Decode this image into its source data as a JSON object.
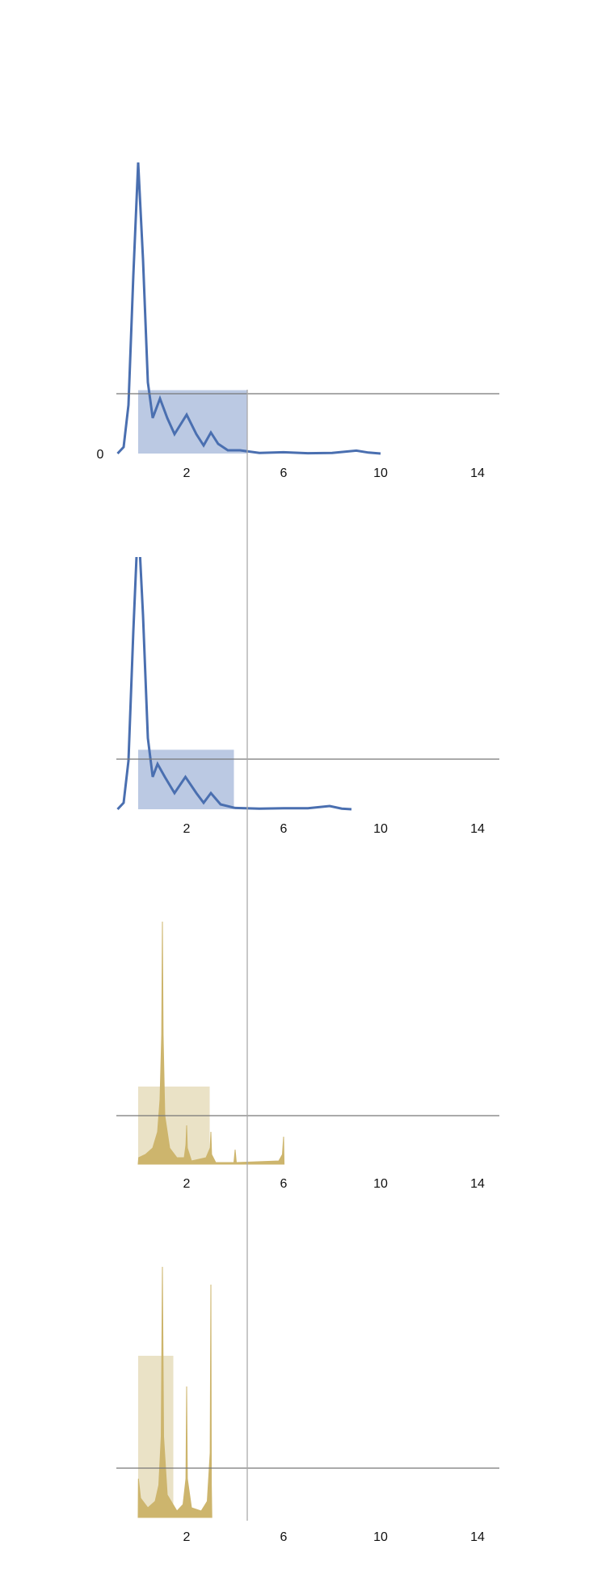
{
  "vline": 4.5,
  "chart_data": [
    {
      "type": "line",
      "color": "#4a6fb0",
      "box_color": "#b4c3e0",
      "x": [
        -0.85,
        -0.6,
        -0.4,
        -0.2,
        0,
        0.2,
        0.4,
        0.6,
        0.9,
        1.2,
        1.5,
        2.0,
        2.4,
        2.7,
        3.0,
        3.3,
        3.7,
        4.2,
        5,
        6,
        7,
        8,
        9,
        9.5,
        10
      ],
      "values": [
        0,
        0.02,
        0.15,
        0.55,
        0.9,
        0.6,
        0.22,
        0.11,
        0.17,
        0.11,
        0.06,
        0.12,
        0.06,
        0.025,
        0.065,
        0.03,
        0.01,
        0.01,
        0.002,
        0.004,
        0.001,
        0.002,
        0.009,
        0.003,
        0
      ],
      "box": {
        "x": [
          0,
          4.5
        ],
        "y": [
          0,
          0.196
        ]
      },
      "hline": 0.185,
      "xlim": [
        -0.9,
        14.9
      ],
      "xticks": [
        2,
        6,
        10,
        14
      ],
      "ylim": [
        0,
        1
      ],
      "yticks": [
        0
      ]
    },
    {
      "type": "line",
      "color": "#4a6fb0",
      "box_color": "#b4c3e0",
      "x": [
        -0.85,
        -0.6,
        -0.4,
        -0.2,
        0,
        0.2,
        0.4,
        0.6,
        0.8,
        1.1,
        1.5,
        1.95,
        2.4,
        2.7,
        3.0,
        3.4,
        4,
        5,
        6,
        7,
        7.9,
        8.4,
        8.8
      ],
      "values": [
        0,
        0.02,
        0.15,
        0.55,
        0.9,
        0.6,
        0.22,
        0.1,
        0.14,
        0.1,
        0.05,
        0.1,
        0.05,
        0.02,
        0.05,
        0.015,
        0.004,
        0.002,
        0.003,
        0.003,
        0.01,
        0.002,
        0
      ],
      "box": {
        "x": [
          0,
          3.95
        ],
        "y": [
          0,
          0.184
        ]
      },
      "hline": 0.155,
      "xlim": [
        -0.9,
        14.9
      ],
      "xticks": [
        2,
        6,
        10,
        14
      ],
      "ylim": [
        0,
        0.78
      ],
      "yticks": []
    },
    {
      "type": "area",
      "color": "#cdb56d",
      "box_color": "#e8dfc0",
      "x": [
        0,
        0.02,
        0.3,
        0.6,
        0.8,
        0.9,
        0.97,
        1.0,
        1.03,
        1.1,
        1.3,
        1.6,
        1.9,
        1.97,
        2.0,
        2.03,
        2.2,
        2.8,
        2.97,
        3.0,
        3.03,
        3.2,
        3.95,
        4.0,
        4.05,
        5.8,
        5.95,
        6.0,
        6.02
      ],
      "values": [
        0,
        0.02,
        0.03,
        0.05,
        0.1,
        0.2,
        0.4,
        0.75,
        0.4,
        0.15,
        0.05,
        0.02,
        0.02,
        0.06,
        0.12,
        0.05,
        0.01,
        0.02,
        0.05,
        0.1,
        0.03,
        0.005,
        0.005,
        0.045,
        0.005,
        0.01,
        0.03,
        0.085,
        0
      ],
      "box": {
        "x": [
          0,
          2.95
        ],
        "y": [
          0,
          0.24
        ]
      },
      "hline": 0.15,
      "xlim": [
        -0.9,
        14.9
      ],
      "xticks": [
        2,
        6,
        10,
        14
      ],
      "ylim": [
        0,
        1
      ],
      "yticks": []
    },
    {
      "type": "area",
      "color": "#cdb56d",
      "box_color": "#e8dfc0",
      "x": [
        0,
        0.01,
        0.1,
        0.4,
        0.7,
        0.85,
        0.95,
        1.0,
        1.05,
        1.2,
        1.6,
        1.85,
        1.97,
        2.0,
        2.03,
        2.2,
        2.6,
        2.85,
        2.97,
        3.0,
        3.02,
        3.04
      ],
      "values": [
        0,
        0.12,
        0.06,
        0.03,
        0.05,
        0.1,
        0.25,
        0.775,
        0.25,
        0.07,
        0.02,
        0.04,
        0.12,
        0.405,
        0.12,
        0.03,
        0.02,
        0.05,
        0.2,
        0.72,
        0.1,
        0
      ],
      "box": {
        "x": [
          0,
          1.45
        ],
        "y": [
          0,
          0.5
        ]
      },
      "hline": 0.1525,
      "xlim": [
        -0.9,
        14.9
      ],
      "xticks": [
        2,
        6,
        10,
        14
      ],
      "ylim": [
        0,
        1
      ],
      "yticks": []
    }
  ]
}
